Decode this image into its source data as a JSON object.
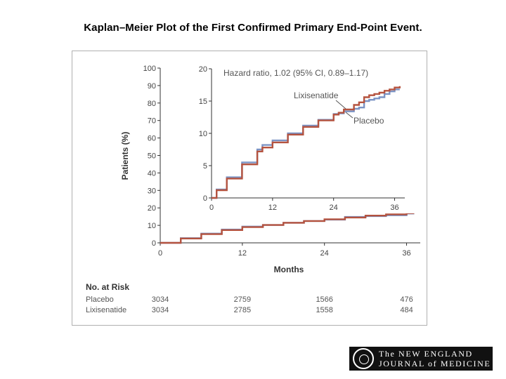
{
  "slide": {
    "title": "Kaplan–Meier Plot of the First Confirmed Primary End-Point Event."
  },
  "logo": {
    "line1": "The NEW ENGLAND",
    "line2": "JOURNAL of MEDICINE"
  },
  "colors": {
    "placebo": "#b5533f",
    "lixisenatide": "#7b93c4",
    "axis": "#333333"
  },
  "chart_data": {
    "type": "line",
    "main": {
      "ylabel": "Patients (%)",
      "xlabel": "Months",
      "xlim": [
        0,
        38
      ],
      "ylim": [
        0,
        100
      ],
      "x_ticks": [
        "0",
        "12",
        "24",
        "36"
      ],
      "y_ticks": [
        "0",
        "10",
        "20",
        "30",
        "40",
        "50",
        "60",
        "70",
        "80",
        "90",
        "100"
      ],
      "series": [
        {
          "name": "Placebo",
          "x": [
            0,
            3,
            6,
            9,
            12,
            15,
            18,
            21,
            24,
            27,
            30,
            33,
            36,
            37
          ],
          "y": [
            0,
            2.5,
            5.0,
            7.3,
            9.0,
            10.2,
            11.5,
            12.5,
            13.5,
            14.5,
            15.6,
            16.3,
            17.0,
            17.3
          ]
        },
        {
          "name": "Lixisenatide",
          "x": [
            0,
            3,
            6,
            9,
            12,
            15,
            18,
            21,
            24,
            27,
            30,
            33,
            36,
            37
          ],
          "y": [
            0,
            2.7,
            5.3,
            7.6,
            9.3,
            10.2,
            11.5,
            12.5,
            13.3,
            14.8,
            15.3,
            15.8,
            16.8,
            17.0
          ]
        }
      ]
    },
    "inset": {
      "annotation": "Hazard ratio, 1.02 (95% CI, 0.89–1.17)",
      "xlim": [
        0,
        38
      ],
      "ylim": [
        0,
        20
      ],
      "x_ticks": [
        "0",
        "12",
        "24",
        "36"
      ],
      "y_ticks": [
        "0",
        "5",
        "10",
        "15",
        "20"
      ],
      "labels": [
        "Lixisenatide",
        "Placebo"
      ],
      "series": [
        {
          "name": "Placebo",
          "x": [
            0,
            1,
            3,
            6,
            9,
            10,
            12,
            15,
            18,
            21,
            24,
            25,
            26,
            28,
            29,
            30,
            31,
            32,
            33,
            34,
            35,
            36,
            37
          ],
          "y": [
            0,
            1.2,
            3.0,
            5.2,
            7.2,
            7.8,
            8.6,
            9.8,
            11.0,
            12.0,
            12.9,
            13.2,
            13.7,
            14.4,
            14.8,
            15.6,
            15.9,
            16.1,
            16.3,
            16.6,
            16.8,
            17.1,
            17.3
          ]
        },
        {
          "name": "Lixisenatide",
          "x": [
            0,
            1,
            3,
            6,
            9,
            10,
            12,
            15,
            18,
            21,
            24,
            25,
            26,
            28,
            29,
            30,
            31,
            32,
            33,
            34,
            35,
            36,
            37
          ],
          "y": [
            0,
            1.3,
            3.2,
            5.5,
            7.5,
            8.2,
            8.9,
            10.0,
            11.2,
            12.1,
            13.0,
            13.1,
            13.4,
            13.8,
            14.0,
            15.0,
            15.2,
            15.4,
            15.6,
            16.1,
            16.5,
            16.8,
            16.8
          ]
        }
      ]
    },
    "risk_table": {
      "title": "No. at Risk",
      "rows": [
        {
          "label": "Placebo",
          "values": [
            "3034",
            "2759",
            "1566",
            "476"
          ]
        },
        {
          "label": "Lixisenatide",
          "values": [
            "3034",
            "2785",
            "1558",
            "484"
          ]
        }
      ]
    }
  }
}
